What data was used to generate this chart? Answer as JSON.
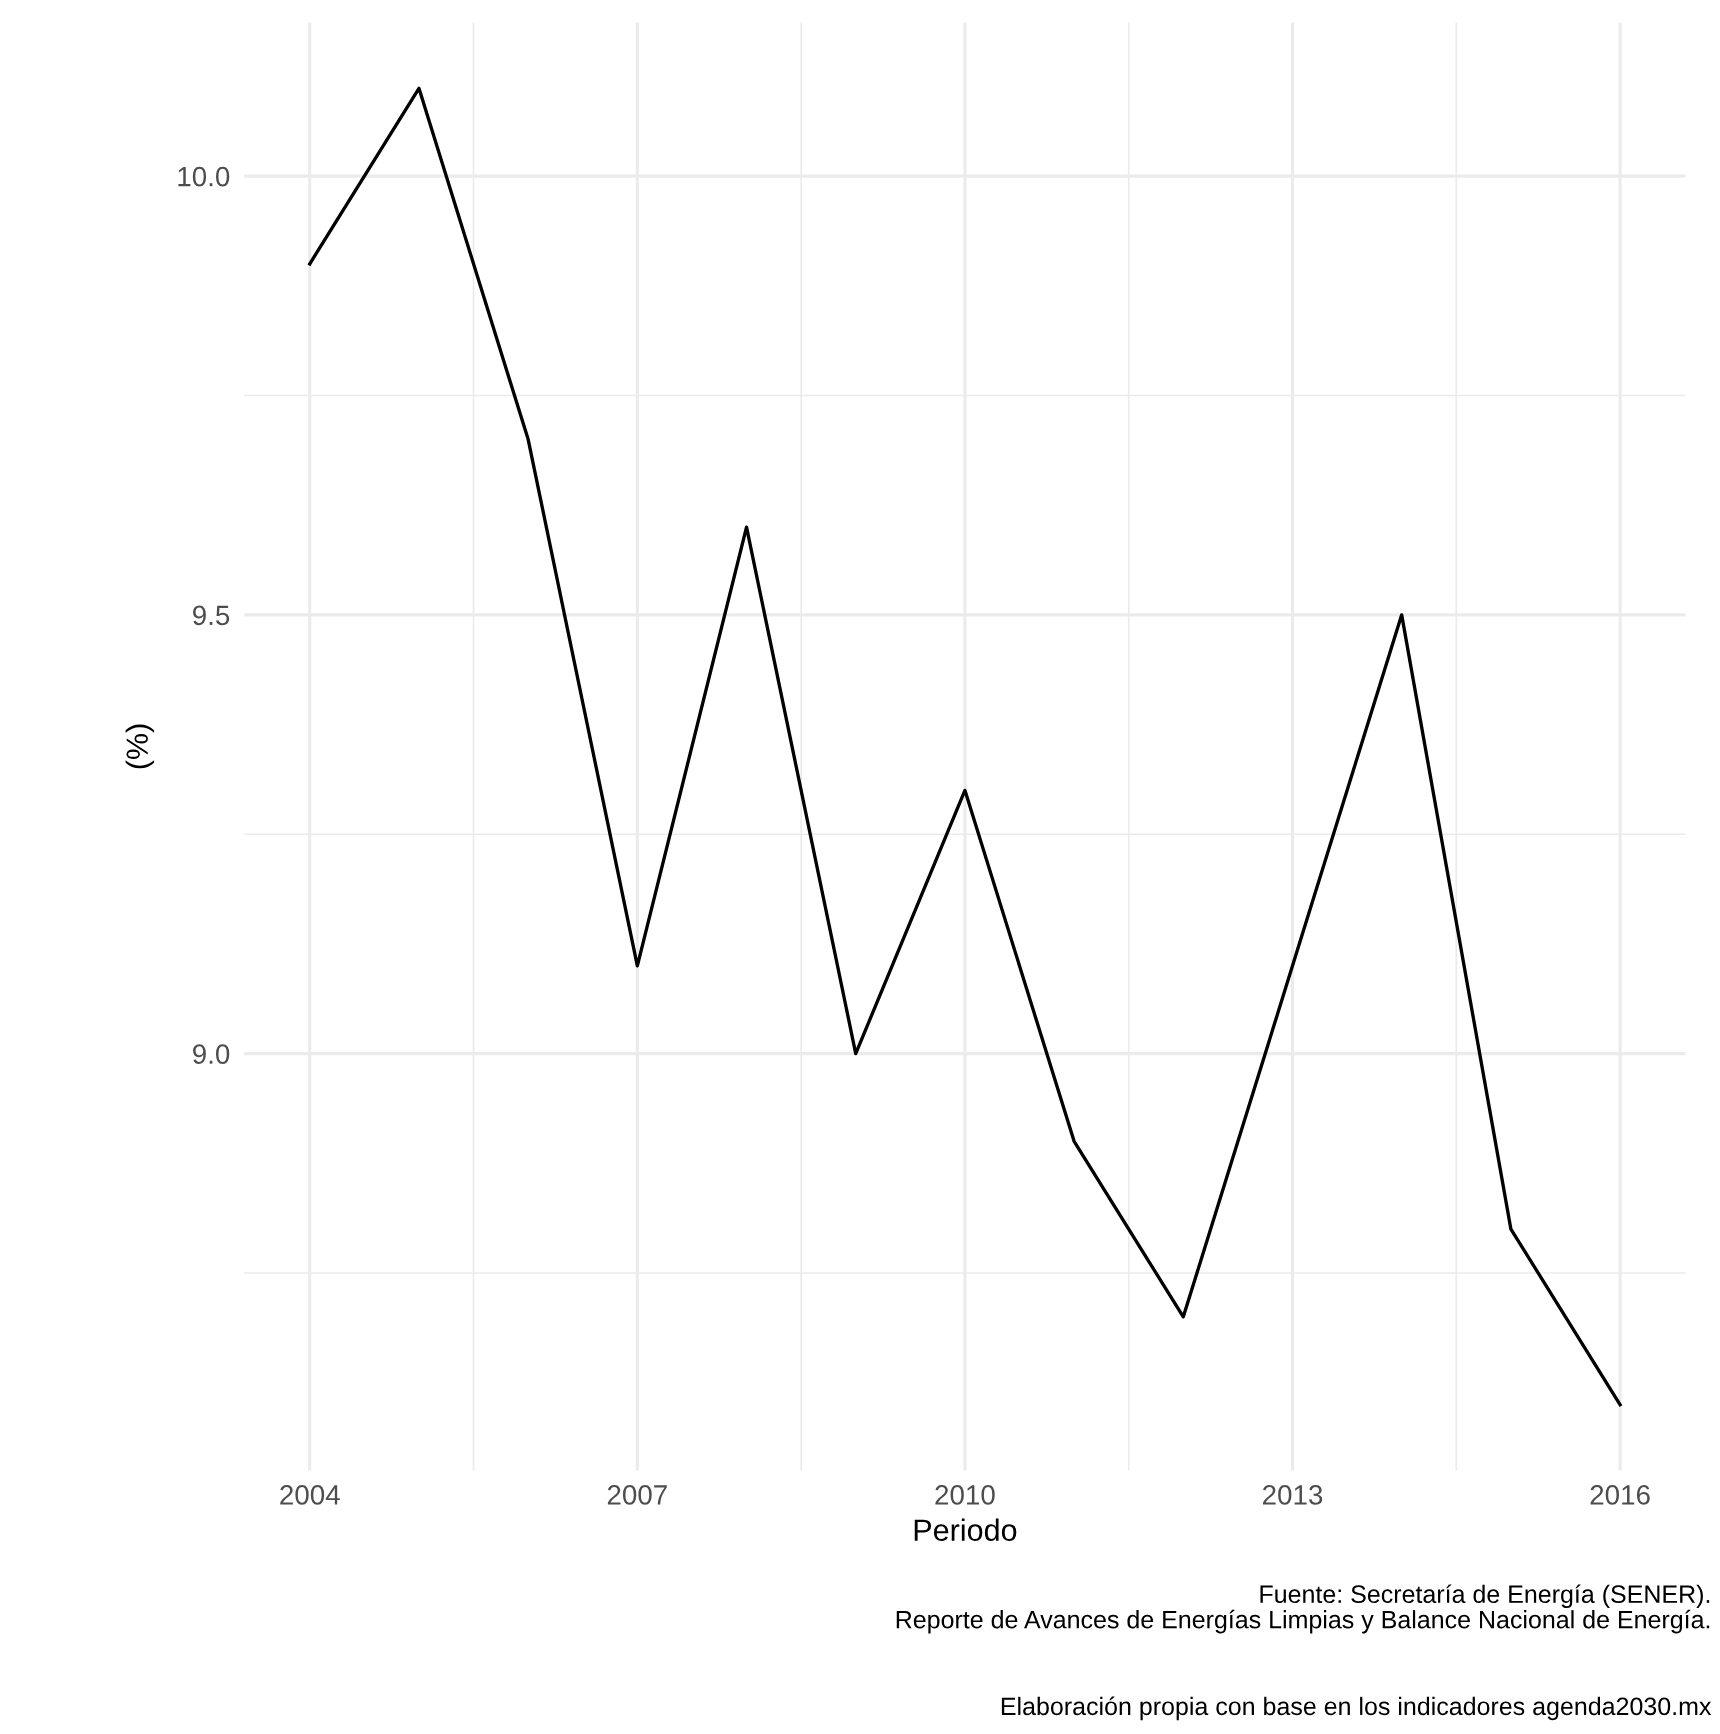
{
  "chart_data": {
    "type": "line",
    "xlabel": "Periodo",
    "ylabel": "(%)",
    "x": [
      2004,
      2005,
      2006,
      2007,
      2008,
      2009,
      2010,
      2011,
      2012,
      2013,
      2014,
      2015,
      2016
    ],
    "series": [
      {
        "color": "#000000",
        "values": [
          9.9,
          10.1,
          9.7,
          9.1,
          9.6,
          9.0,
          9.3,
          8.9,
          8.7,
          9.1,
          9.5,
          8.8,
          8.6
        ]
      }
    ],
    "xlim": [
      2003.4,
      2016.6
    ],
    "xticks": [
      2004,
      2007,
      2010,
      2013,
      2016
    ],
    "ylim": [
      8.525,
      10.175
    ],
    "yticks": [
      {
        "value": 9,
        "label": "9.0"
      },
      9.5,
      {
        "value": 10,
        "label": "10.0"
      }
    ],
    "grid": true,
    "legend": false,
    "annotations": [
      "Fuente: Secretaría de Energía (SENER).\nReporte de Avances de Energías Limpias y Balance Nacional de Energía.",
      "Elaboración propia con base en los indicadores agenda2030.mx"
    ]
  }
}
